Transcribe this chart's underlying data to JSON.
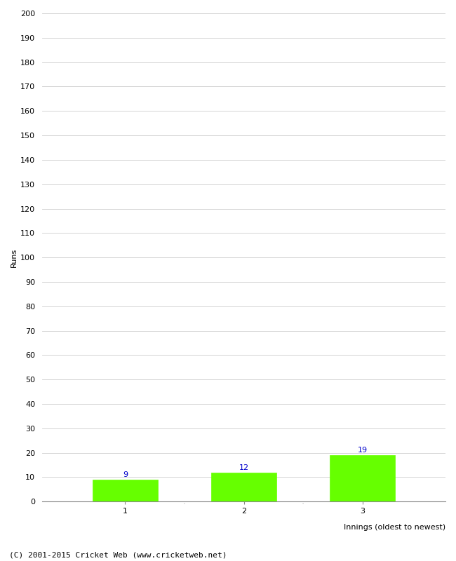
{
  "categories": [
    "1",
    "2",
    "3"
  ],
  "values": [
    9,
    12,
    19
  ],
  "bar_color": "#66ff00",
  "bar_edge_color": "#66ff00",
  "label_color": "#0000cc",
  "label_fontsize": 8,
  "ylabel": "Runs",
  "xlabel": "Innings (oldest to newest)",
  "ylim": [
    0,
    200
  ],
  "ytick_step": 10,
  "background_color": "#ffffff",
  "grid_color": "#cccccc",
  "footnote": "(C) 2001-2015 Cricket Web (www.cricketweb.net)",
  "footnote_fontsize": 8,
  "bar_width": 0.55
}
